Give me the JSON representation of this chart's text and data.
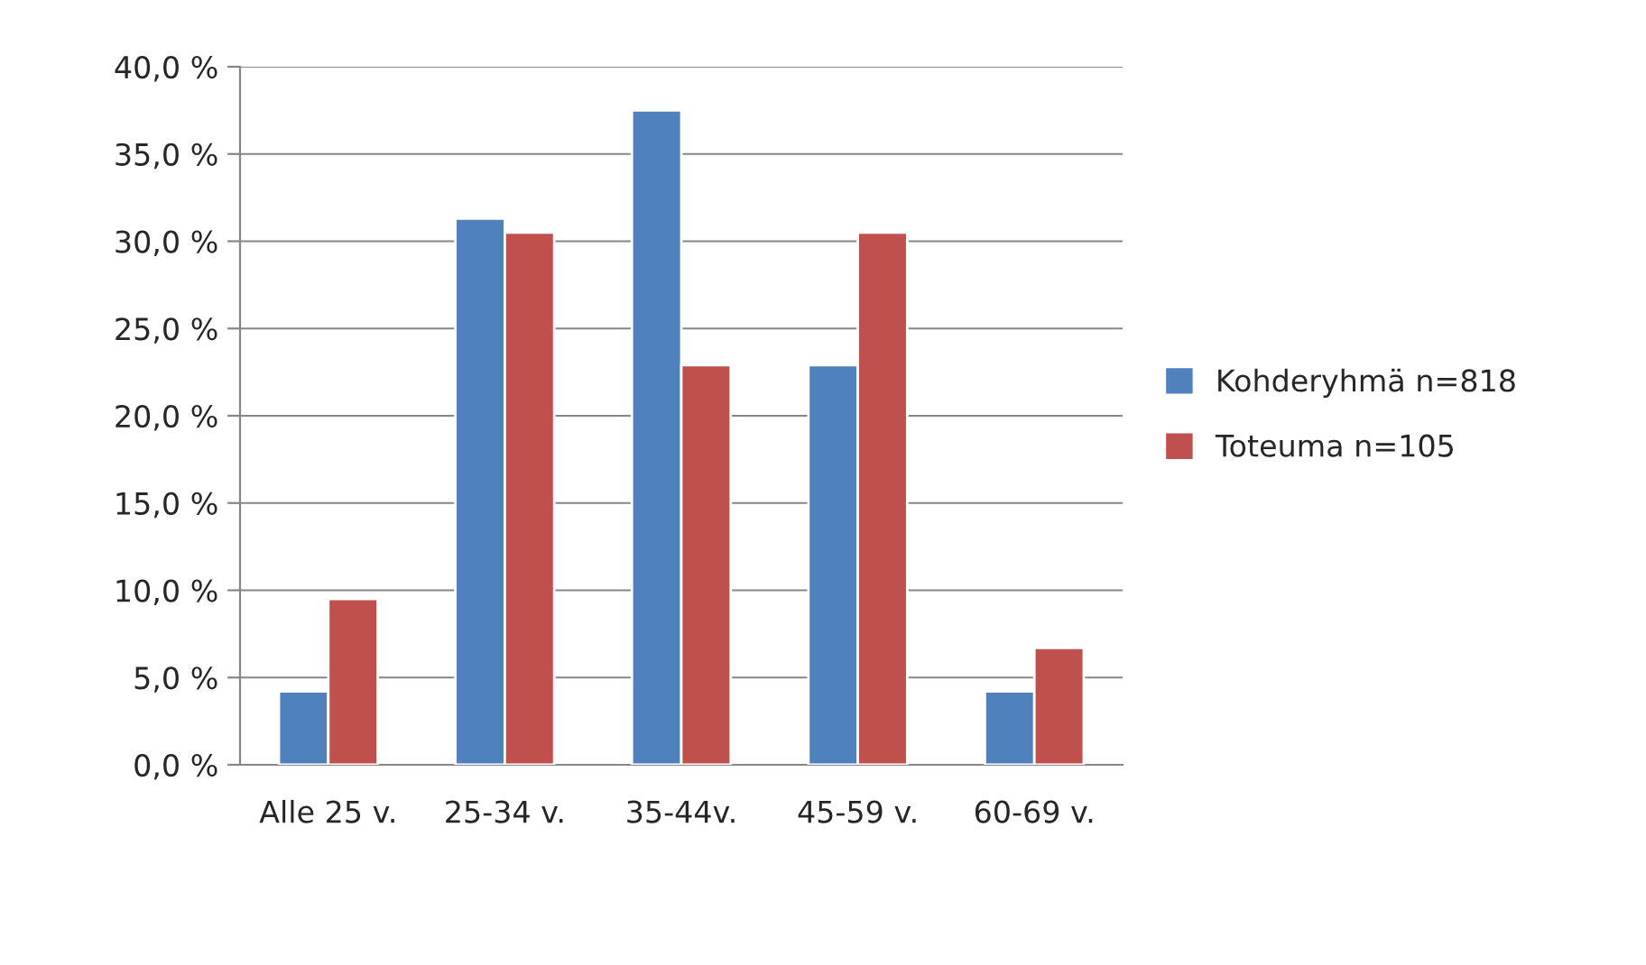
{
  "chart_data": {
    "type": "bar",
    "categories": [
      "Alle 25 v.",
      "25-34 v.",
      "35-44v.",
      "45-59 v.",
      "60-69 v."
    ],
    "series": [
      {
        "name": "Kohderyhmä n=818",
        "color": "#4f81bd",
        "values": [
          4.2,
          31.3,
          37.5,
          22.9,
          4.2
        ]
      },
      {
        "name": "Toteuma n=105",
        "color": "#c0504d",
        "values": [
          9.5,
          30.5,
          22.9,
          30.5,
          6.7
        ]
      }
    ],
    "ylim": [
      0,
      40
    ],
    "yticks": [
      {
        "value": 0,
        "label": "0,0 %"
      },
      {
        "value": 5,
        "label": "5,0 %"
      },
      {
        "value": 10,
        "label": "10,0 %"
      },
      {
        "value": 15,
        "label": "15,0 %"
      },
      {
        "value": 20,
        "label": "20,0 %"
      },
      {
        "value": 25,
        "label": "25,0 %"
      },
      {
        "value": 30,
        "label": "30,0 %"
      },
      {
        "value": 35,
        "label": "35,0 %"
      },
      {
        "value": 40,
        "label": "40,0 %"
      }
    ],
    "grid": "y",
    "legend": "right"
  }
}
